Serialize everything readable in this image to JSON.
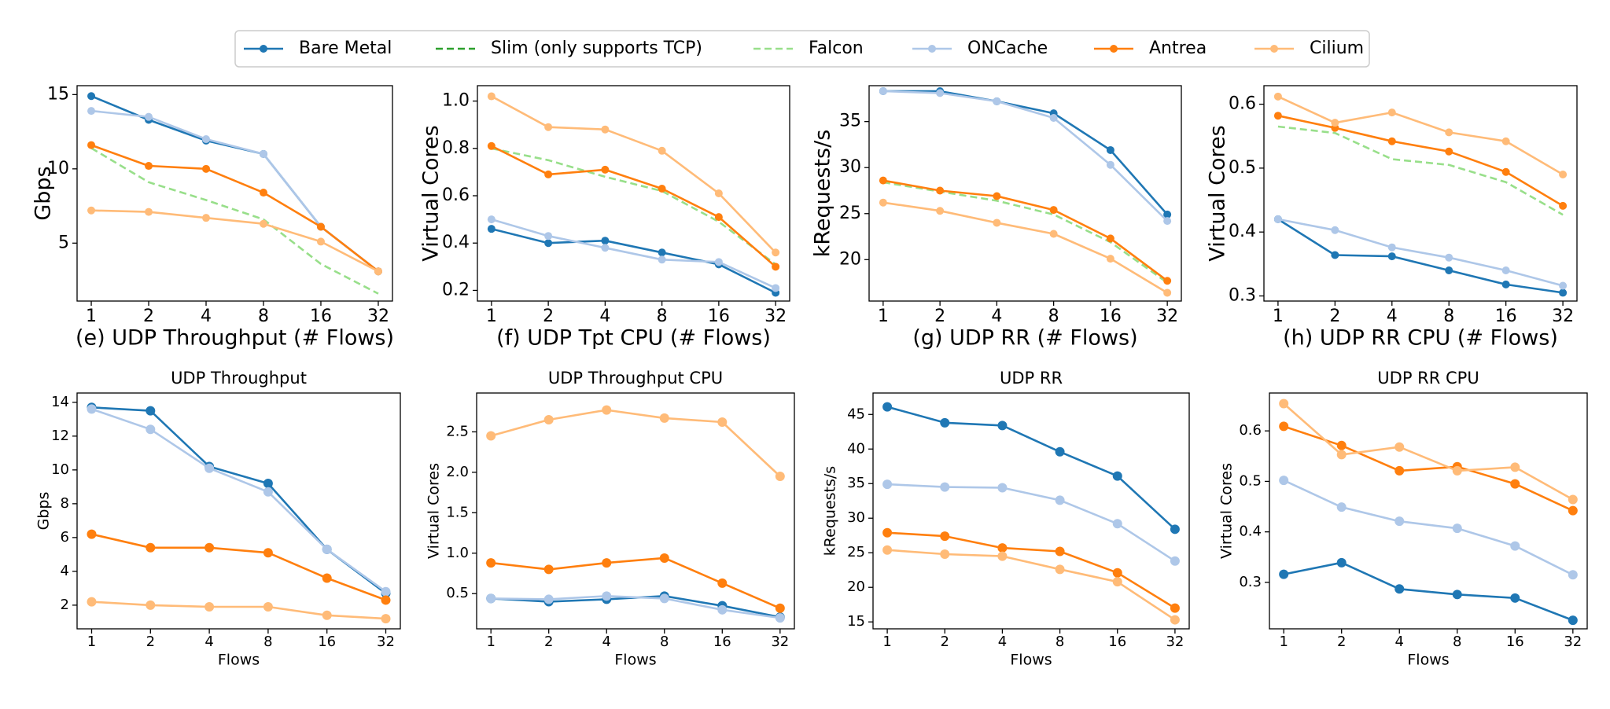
{
  "chart_data": [
    {
      "type": "line",
      "xlabel": "(e) UDP Throughput (# Flows)",
      "ylabel": "Gbps",
      "categories": [
        "1",
        "2",
        "4",
        "8",
        "16",
        "32"
      ],
      "ylim": [
        1.1,
        15.6
      ],
      "yticks": [
        5,
        10,
        15
      ],
      "series": [
        {
          "name": "Bare Metal",
          "color": "#1f77b4",
          "linestyle": "solid",
          "values": [
            14.9,
            13.3,
            11.9,
            11.0,
            6.1,
            3.1
          ]
        },
        {
          "name": "Slim (only supports TCP)",
          "color": "#2ca02c",
          "linestyle": "dashed",
          "values": [
            null,
            null,
            null,
            null,
            null,
            null
          ]
        },
        {
          "name": "Falcon",
          "color": "#98df8a",
          "linestyle": "dashed",
          "values": [
            11.4,
            9.1,
            7.9,
            6.6,
            3.6,
            1.6
          ]
        },
        {
          "name": "ONCache",
          "color": "#aec7e8",
          "linestyle": "solid",
          "values": [
            13.9,
            13.5,
            12.0,
            11.0,
            6.1,
            3.1
          ]
        },
        {
          "name": "Antrea",
          "color": "#ff7f0e",
          "linestyle": "solid",
          "values": [
            11.6,
            10.2,
            10.0,
            8.4,
            6.1,
            3.1
          ]
        },
        {
          "name": "Cilium",
          "color": "#ffbb78",
          "linestyle": "solid",
          "values": [
            7.2,
            7.1,
            6.7,
            6.3,
            5.1,
            3.1
          ]
        }
      ]
    },
    {
      "type": "line",
      "xlabel": "(f) UDP Tpt CPU (# Flows)",
      "ylabel": "Virtual Cores",
      "categories": [
        "1",
        "2",
        "4",
        "8",
        "16",
        "32"
      ],
      "ylim": [
        0.155,
        1.065
      ],
      "yticks": [
        0.2,
        0.4,
        0.6,
        0.8,
        {
          "value": 1,
          "label": "1.0"
        }
      ],
      "series": [
        {
          "name": "Falcon",
          "color": "#98df8a",
          "linestyle": "dashed",
          "values": [
            0.8,
            0.75,
            0.68,
            0.62,
            0.49,
            0.31
          ]
        },
        {
          "name": "Bare Metal",
          "color": "#1f77b4",
          "linestyle": "solid",
          "values": [
            0.46,
            0.4,
            0.41,
            0.36,
            0.31,
            0.19
          ]
        },
        {
          "name": "ONCache",
          "color": "#aec7e8",
          "linestyle": "solid",
          "values": [
            0.5,
            0.43,
            0.38,
            0.33,
            0.32,
            0.21
          ]
        },
        {
          "name": "Antrea",
          "color": "#ff7f0e",
          "linestyle": "solid",
          "values": [
            0.81,
            0.69,
            0.71,
            0.63,
            0.51,
            0.3
          ]
        },
        {
          "name": "Cilium",
          "color": "#ffbb78",
          "linestyle": "solid",
          "values": [
            1.02,
            0.89,
            0.88,
            0.79,
            0.61,
            0.36
          ]
        }
      ]
    },
    {
      "type": "line",
      "xlabel": "(g) UDP RR (# Flows)",
      "ylabel": "kRequests/s",
      "categories": [
        "1",
        "2",
        "4",
        "8",
        "16",
        "32"
      ],
      "ylim": [
        15.5,
        38.9
      ],
      "yticks": [
        20,
        25,
        30,
        35
      ],
      "series": [
        {
          "name": "Falcon",
          "color": "#98df8a",
          "linestyle": "dashed",
          "values": [
            28.4,
            27.4,
            26.4,
            24.9,
            21.9,
            17.5
          ]
        },
        {
          "name": "Bare Metal",
          "color": "#1f77b4",
          "linestyle": "solid",
          "values": [
            38.3,
            38.3,
            37.2,
            35.9,
            31.9,
            24.9
          ]
        },
        {
          "name": "ONCache",
          "color": "#aec7e8",
          "linestyle": "solid",
          "values": [
            38.3,
            38.1,
            37.2,
            35.4,
            30.3,
            24.2
          ]
        },
        {
          "name": "Antrea",
          "color": "#ff7f0e",
          "linestyle": "solid",
          "values": [
            28.6,
            27.5,
            26.9,
            25.4,
            22.3,
            17.7
          ]
        },
        {
          "name": "Cilium",
          "color": "#ffbb78",
          "linestyle": "solid",
          "values": [
            26.2,
            25.3,
            24.0,
            22.8,
            20.1,
            16.4
          ]
        }
      ]
    },
    {
      "type": "line",
      "xlabel": "(h) UDP RR CPU (# Flows)",
      "ylabel": "Virtual Cores",
      "categories": [
        "1",
        "2",
        "4",
        "8",
        "16",
        "32"
      ],
      "ylim": [
        0.292,
        0.629
      ],
      "yticks": [
        0.3,
        0.4,
        0.5,
        0.6
      ],
      "series": [
        {
          "name": "Falcon",
          "color": "#98df8a",
          "linestyle": "dashed",
          "values": [
            0.565,
            0.555,
            0.514,
            0.505,
            0.478,
            0.427
          ]
        },
        {
          "name": "Bare Metal",
          "color": "#1f77b4",
          "linestyle": "solid",
          "values": [
            0.42,
            0.364,
            0.362,
            0.34,
            0.318,
            0.305
          ]
        },
        {
          "name": "ONCache",
          "color": "#aec7e8",
          "linestyle": "solid",
          "values": [
            0.42,
            0.403,
            0.376,
            0.36,
            0.34,
            0.316
          ]
        },
        {
          "name": "Antrea",
          "color": "#ff7f0e",
          "linestyle": "solid",
          "values": [
            0.582,
            0.563,
            0.542,
            0.526,
            0.494,
            0.441
          ]
        },
        {
          "name": "Cilium",
          "color": "#ffbb78",
          "linestyle": "solid",
          "values": [
            0.612,
            0.571,
            0.587,
            0.556,
            0.542,
            0.49
          ]
        }
      ]
    },
    {
      "type": "line",
      "title": "UDP Throughput",
      "xlabel": "Flows",
      "ylabel": "Gbps",
      "categories": [
        "1",
        "2",
        "4",
        "8",
        "16",
        "32"
      ],
      "ylim": [
        0.6,
        14.55
      ],
      "yticks": [
        2,
        4,
        6,
        8,
        10,
        12,
        14
      ],
      "series": [
        {
          "name": "Bare Metal",
          "color": "#1f77b4",
          "linestyle": "solid",
          "values": [
            13.7,
            13.5,
            10.2,
            9.2,
            5.3,
            2.7
          ]
        },
        {
          "name": "ONCache",
          "color": "#aec7e8",
          "linestyle": "solid",
          "values": [
            13.6,
            12.4,
            10.1,
            8.7,
            5.3,
            2.8
          ]
        },
        {
          "name": "Antrea",
          "color": "#ff7f0e",
          "linestyle": "solid",
          "values": [
            6.2,
            5.4,
            5.4,
            5.1,
            3.6,
            2.3
          ]
        },
        {
          "name": "Cilium",
          "color": "#ffbb78",
          "linestyle": "solid",
          "values": [
            2.2,
            2.0,
            1.9,
            1.9,
            1.4,
            1.2
          ]
        }
      ]
    },
    {
      "type": "line",
      "title": "UDP Throughput CPU",
      "xlabel": "Flows",
      "ylabel": "Virtual Cores",
      "categories": [
        "1",
        "2",
        "4",
        "8",
        "16",
        "32"
      ],
      "ylim": [
        0.065,
        2.98
      ],
      "yticks": [
        0.5,
        {
          "value": 1,
          "label": "1.0"
        },
        1.5,
        {
          "value": 2,
          "label": "2.0"
        },
        2.5
      ],
      "series": [
        {
          "name": "Bare Metal",
          "color": "#1f77b4",
          "linestyle": "solid",
          "values": [
            0.44,
            0.4,
            0.43,
            0.47,
            0.35,
            0.21
          ]
        },
        {
          "name": "ONCache",
          "color": "#aec7e8",
          "linestyle": "solid",
          "values": [
            0.44,
            0.43,
            0.47,
            0.44,
            0.3,
            0.2
          ]
        },
        {
          "name": "Antrea",
          "color": "#ff7f0e",
          "linestyle": "solid",
          "values": [
            0.88,
            0.8,
            0.88,
            0.94,
            0.63,
            0.32
          ]
        },
        {
          "name": "Cilium",
          "color": "#ffbb78",
          "linestyle": "solid",
          "values": [
            2.45,
            2.65,
            2.77,
            2.67,
            2.62,
            1.95
          ]
        }
      ]
    },
    {
      "type": "line",
      "title": "UDP RR",
      "xlabel": "Flows",
      "ylabel": "kRequests/s",
      "categories": [
        "1",
        "2",
        "4",
        "8",
        "16",
        "32"
      ],
      "ylim": [
        14.0,
        48.1
      ],
      "yticks": [
        15,
        20,
        25,
        30,
        35,
        40,
        45
      ],
      "series": [
        {
          "name": "Bare Metal",
          "color": "#1f77b4",
          "linestyle": "solid",
          "values": [
            46.1,
            43.8,
            43.4,
            39.6,
            36.1,
            28.4
          ]
        },
        {
          "name": "ONCache",
          "color": "#aec7e8",
          "linestyle": "solid",
          "values": [
            34.9,
            34.5,
            34.4,
            32.6,
            29.2,
            23.8
          ]
        },
        {
          "name": "Antrea",
          "color": "#ff7f0e",
          "linestyle": "solid",
          "values": [
            27.9,
            27.4,
            25.7,
            25.2,
            22.1,
            17.0
          ]
        },
        {
          "name": "Cilium",
          "color": "#ffbb78",
          "linestyle": "solid",
          "values": [
            25.4,
            24.8,
            24.5,
            22.6,
            20.8,
            15.3
          ]
        }
      ]
    },
    {
      "type": "line",
      "title": "UDP RR CPU",
      "xlabel": "Flows",
      "ylabel": "Virtual Cores",
      "categories": [
        "1",
        "2",
        "4",
        "8",
        "16",
        "32"
      ],
      "ylim": [
        0.208,
        0.675
      ],
      "yticks": [
        0.3,
        0.4,
        0.5,
        0.6
      ],
      "series": [
        {
          "name": "Bare Metal",
          "color": "#1f77b4",
          "linestyle": "solid",
          "values": [
            0.316,
            0.339,
            0.287,
            0.276,
            0.269,
            0.225
          ]
        },
        {
          "name": "ONCache",
          "color": "#aec7e8",
          "linestyle": "solid",
          "values": [
            0.502,
            0.449,
            0.421,
            0.407,
            0.372,
            0.315
          ]
        },
        {
          "name": "Antrea",
          "color": "#ff7f0e",
          "linestyle": "solid",
          "values": [
            0.609,
            0.571,
            0.521,
            0.529,
            0.495,
            0.442
          ]
        },
        {
          "name": "Cilium",
          "color": "#ffbb78",
          "linestyle": "solid",
          "values": [
            0.654,
            0.553,
            0.568,
            0.521,
            0.528,
            0.464
          ]
        }
      ]
    }
  ]
}
